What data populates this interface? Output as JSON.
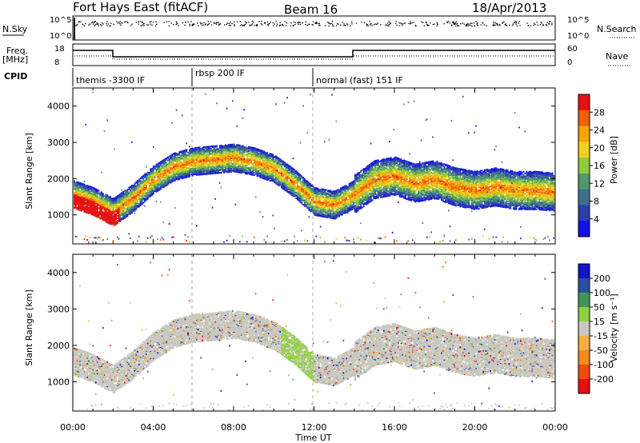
{
  "header": {
    "radar": "Fort Hays East (fitACF)",
    "beam": "Beam 16",
    "date": "18/Apr/2013"
  },
  "top_strip": {
    "nsky_label": "N.Sky",
    "nsearch_label": "N.Search",
    "left_ticks": [
      "10^5",
      "10^0"
    ],
    "right_ticks": [
      "10^5",
      "10^0"
    ]
  },
  "freq_strip": {
    "freq_label": "Freq.",
    "freq_unit": "[MHz]",
    "nave_label": "Nave",
    "left_ticks": [
      "18",
      "8"
    ],
    "right_ticks": [
      "60",
      "0"
    ]
  },
  "cpid": {
    "label": "CPID",
    "segments": [
      "themis -3300 IF",
      "rbsp 200 IF",
      "normal (fast) 151 IF"
    ]
  },
  "colors": {
    "power": [
      "#1414e6",
      "#2b3fa8",
      "#3f6f8f",
      "#4f9a6a",
      "#8fcc3a",
      "#f0d020",
      "#f5a500",
      "#f06000",
      "#e61010"
    ],
    "velocity": [
      "#e61010",
      "#f04a10",
      "#f58a20",
      "#f5b040",
      "#c8c8c0",
      "#8fd040",
      "#3f9a58",
      "#2b4fa0",
      "#1414c8"
    ]
  },
  "chart_data": [
    {
      "type": "heatmap",
      "name": "power",
      "ylabel": "Slant Range [km]",
      "yticks": [
        "1000",
        "2000",
        "3000",
        "4000"
      ],
      "ylim": [
        200,
        4500
      ],
      "xlim": [
        0,
        24
      ],
      "colorbar_label": "Power [dB]",
      "colorbar_ticks": [
        "4",
        "8",
        "12",
        "16",
        "20",
        "24",
        "28"
      ],
      "colorbar_range": [
        0,
        32
      ],
      "echo_band_center_km": [
        [
          0,
          1600
        ],
        [
          1,
          1400
        ],
        [
          2,
          1100
        ],
        [
          3,
          1500
        ],
        [
          4,
          2000
        ],
        [
          5,
          2350
        ],
        [
          6,
          2500
        ],
        [
          7,
          2550
        ],
        [
          8,
          2600
        ],
        [
          9,
          2500
        ],
        [
          10,
          2300
        ],
        [
          11,
          1900
        ],
        [
          12,
          1400
        ],
        [
          13,
          1300
        ],
        [
          14,
          1600
        ],
        [
          15,
          2000
        ],
        [
          16,
          2100
        ],
        [
          17,
          1900
        ],
        [
          18,
          2000
        ],
        [
          19,
          1800
        ],
        [
          20,
          1700
        ],
        [
          21,
          1800
        ],
        [
          22,
          1700
        ],
        [
          23,
          1700
        ],
        [
          24,
          1650
        ]
      ]
    },
    {
      "type": "heatmap",
      "name": "velocity",
      "ylabel": "Slant Range [km]",
      "yticks": [
        "1000",
        "2000",
        "3000",
        "4000"
      ],
      "ylim": [
        200,
        4500
      ],
      "xlim": [
        0,
        24
      ],
      "colorbar_label": "Velocity [m s⁻¹]",
      "colorbar_ticks": [
        "200",
        "100",
        "50",
        "15",
        "-15",
        "-50",
        "-100",
        "-200"
      ],
      "xticks": [
        "00:00",
        "04:00",
        "08:00",
        "12:00",
        "16:00",
        "20:00",
        "00:00"
      ],
      "xlabel": "Time UT"
    }
  ]
}
